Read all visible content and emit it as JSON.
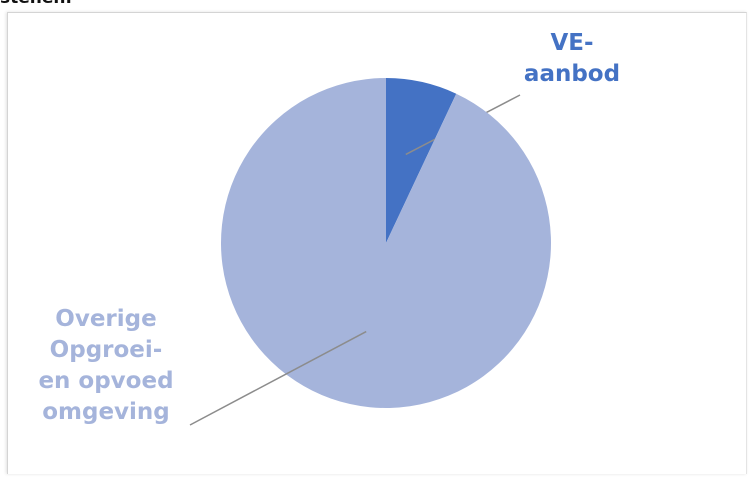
{
  "page": {
    "clipped_heading": "stenen."
  },
  "chart_data": {
    "type": "pie",
    "title": "",
    "slices": [
      {
        "label": "VE-aanbod",
        "label_lines": [
          "VE-",
          "aanbod"
        ],
        "value": 7,
        "color": "#4472c4"
      },
      {
        "label": "Overige Opgroei- en opvoed omgeving",
        "label_lines": [
          "Overige",
          "Opgroei-",
          "en opvoed",
          "omgeving"
        ],
        "value": 93,
        "color": "#a5b4db"
      }
    ],
    "start_angle": "12 o'clock",
    "direction": "clockwise",
    "legend": "none",
    "data_labels": "outside with leader lines",
    "label_colors": [
      "#4472c4",
      "#a5b4db"
    ]
  }
}
